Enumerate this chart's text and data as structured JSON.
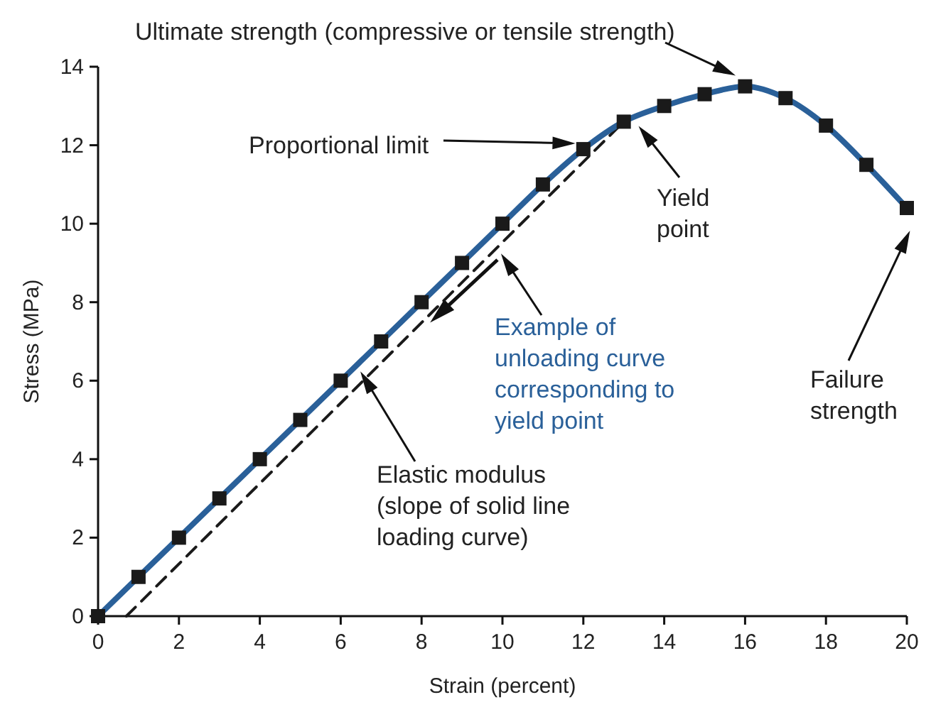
{
  "chart_data": {
    "type": "line",
    "xlabel": "Strain (percent)",
    "ylabel": "Stress (MPa)",
    "xlim": [
      0,
      20
    ],
    "xticks": [
      0,
      2,
      4,
      6,
      8,
      10,
      12,
      14,
      16,
      18,
      20
    ],
    "ylim": [
      0,
      14
    ],
    "yticks": [
      0,
      2,
      4,
      6,
      8,
      10,
      12,
      14
    ],
    "grid": false,
    "series": [
      {
        "color": "#2a6099",
        "marker": "square",
        "line_style": "solid",
        "x": [
          0,
          1,
          2,
          3,
          4,
          5,
          6,
          7,
          8,
          9,
          10,
          11,
          12,
          13,
          14,
          15,
          16,
          17,
          18,
          19,
          20
        ],
        "values": [
          0,
          1,
          2,
          3,
          4,
          5,
          6,
          7,
          8,
          9,
          10,
          11,
          11.9,
          12.6,
          13,
          13.3,
          13.5,
          13.2,
          12.5,
          11.5,
          10.4
        ]
      },
      {
        "color": "#1a1a1a",
        "line_style": "dashed",
        "x": [
          0.7,
          13
        ],
        "values": [
          0,
          12.6
        ]
      }
    ],
    "annotations": [
      "Ultimate strength (compressive or tensile strength)",
      "Proportional limit",
      "Yield point",
      "Example of unloading curve corresponding to yield point",
      "Elastic modulus (slope of solid line loading curve)",
      "Failure strength"
    ]
  }
}
